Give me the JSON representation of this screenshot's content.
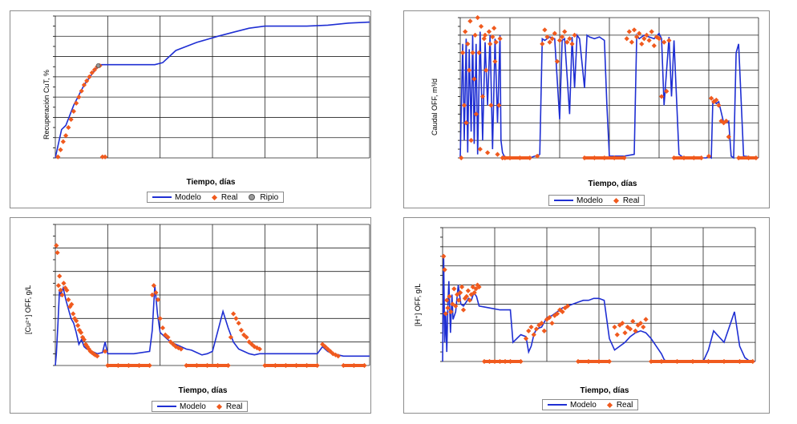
{
  "colors": {
    "model": "#1f2fd3",
    "real": "#f05a1e",
    "ripio": "#9a9a9a",
    "grid": "#222222"
  },
  "legend": {
    "model": "Modelo",
    "real": "Real",
    "ripio": "Ripio"
  },
  "chart_data": [
    {
      "type": "line",
      "xlabel": "Tiempo, días",
      "ylabel": "Recuperación CuT, %",
      "grid": true,
      "xlim": [
        0,
        6
      ],
      "ylim": [
        0,
        7
      ],
      "series": [
        {
          "name": "Modelo",
          "kind": "line",
          "x": [
            0,
            0.05,
            0.12,
            0.2,
            0.35,
            0.55,
            0.8,
            0.88,
            1.2,
            1.5,
            1.9,
            2.05,
            2.3,
            2.7,
            3.1,
            3.4,
            3.7,
            4.0,
            4.4,
            4.8,
            5.2,
            5.6,
            6.0
          ],
          "y": [
            0,
            0.6,
            1.4,
            1.6,
            2.6,
            3.6,
            4.5,
            4.6,
            4.6,
            4.6,
            4.6,
            4.7,
            5.3,
            5.7,
            6.0,
            6.2,
            6.4,
            6.5,
            6.5,
            6.5,
            6.55,
            6.65,
            6.7
          ]
        },
        {
          "name": "Real",
          "kind": "scatter",
          "x": [
            0.05,
            0.1,
            0.15,
            0.2,
            0.25,
            0.3,
            0.35,
            0.4,
            0.45,
            0.5,
            0.55,
            0.6,
            0.65,
            0.7,
            0.75,
            0.8,
            0.85,
            0.9,
            0.95
          ],
          "y": [
            0.05,
            0.4,
            0.8,
            1.1,
            1.5,
            1.9,
            2.3,
            2.7,
            3.0,
            3.3,
            3.6,
            3.8,
            4.0,
            4.2,
            4.35,
            4.5,
            4.55,
            0.05,
            0.05
          ]
        },
        {
          "name": "Ripio",
          "kind": "scatter",
          "x": [
            0.82
          ],
          "y": [
            4.55
          ]
        }
      ]
    },
    {
      "type": "line",
      "xlabel": "Tiempo, días",
      "ylabel": "Caudal OFF, m³/d",
      "grid": true,
      "xlim": [
        0,
        6
      ],
      "ylim": [
        0,
        8
      ],
      "series": [
        {
          "name": "Modelo",
          "kind": "line",
          "x": [
            0,
            0.05,
            0.08,
            0.12,
            0.15,
            0.18,
            0.22,
            0.25,
            0.28,
            0.32,
            0.35,
            0.4,
            0.45,
            0.5,
            0.55,
            0.6,
            0.65,
            0.7,
            0.75,
            0.8,
            0.82,
            0.85,
            0.9,
            1.4,
            1.6,
            1.65,
            1.7,
            1.8,
            1.9,
            2.0,
            2.05,
            2.1,
            2.2,
            2.25,
            2.3,
            2.35,
            2.4,
            2.5,
            2.55,
            2.6,
            2.7,
            2.8,
            2.9,
            2.95,
            3.0,
            3.3,
            3.5,
            3.55,
            3.6,
            3.7,
            3.8,
            3.9,
            4.0,
            4.05,
            4.1,
            4.2,
            4.25,
            4.3,
            4.4,
            4.5,
            4.6,
            4.7,
            4.8,
            4.85,
            4.9,
            4.95,
            5.0,
            5.05,
            5.08,
            5.1,
            5.15,
            5.2,
            5.3,
            5.35,
            5.4,
            5.45,
            5.5,
            5.55,
            5.6,
            5.7,
            6.0
          ],
          "y": [
            0,
            6.5,
            1,
            6.8,
            0.3,
            6.2,
            1.5,
            7,
            0.8,
            6.5,
            0.2,
            7.2,
            1,
            6.6,
            3,
            7,
            0.5,
            6.8,
            2,
            7,
            1,
            0.3,
            0,
            0,
            0.2,
            6.8,
            6.7,
            6.9,
            6.8,
            2.2,
            6.7,
            6.8,
            2.5,
            6.9,
            4,
            7.0,
            6.8,
            4,
            7,
            6.9,
            6.8,
            6.9,
            6.7,
            3,
            0.1,
            0.1,
            0.2,
            7,
            6.8,
            7,
            6.9,
            6.8,
            7.1,
            6.8,
            3,
            6.9,
            3.5,
            6.7,
            0.2,
            0,
            0,
            0,
            0,
            0,
            0,
            0,
            0.1,
            0,
            3.2,
            3.3,
            3.1,
            3.2,
            2,
            2.0,
            2.1,
            0.1,
            0,
            6,
            6.5,
            0.1,
            0
          ]
        },
        {
          "name": "Real",
          "kind": "scatter",
          "x": [
            0.02,
            0.05,
            0.08,
            0.1,
            0.12,
            0.15,
            0.18,
            0.2,
            0.22,
            0.25,
            0.28,
            0.3,
            0.32,
            0.35,
            0.38,
            0.4,
            0.42,
            0.45,
            0.48,
            0.5,
            0.52,
            0.55,
            0.58,
            0.6,
            0.62,
            0.65,
            0.68,
            0.7,
            0.72,
            0.75,
            0.78,
            0.8,
            0.85,
            0.9,
            1.0,
            1.2,
            1.4,
            1.55,
            1.65,
            1.7,
            1.75,
            1.8,
            1.85,
            1.9,
            1.95,
            2.0,
            2.05,
            2.1,
            2.15,
            2.2,
            2.25,
            2.3,
            2.5,
            2.7,
            2.9,
            3.1,
            3.3,
            3.35,
            3.4,
            3.45,
            3.5,
            3.55,
            3.6,
            3.65,
            3.7,
            3.75,
            3.8,
            3.85,
            3.9,
            3.95,
            4.0,
            4.05,
            4.1,
            4.15,
            4.2,
            4.3,
            4.5,
            4.7,
            4.85,
            5.0,
            5.05,
            5.1,
            5.15,
            5.2,
            5.25,
            5.3,
            5.35,
            5.4,
            5.6,
            5.8,
            5.95
          ],
          "y": [
            0,
            6,
            3,
            7.2,
            2,
            6.5,
            5,
            7.8,
            1,
            6,
            4.5,
            7,
            2.5,
            8,
            6,
            0.5,
            7.5,
            3.5,
            6.8,
            7,
            5,
            0.3,
            7.2,
            6.5,
            3,
            6.9,
            7.4,
            5.5,
            6.6,
            0.2,
            3,
            6.8,
            0,
            0,
            0,
            0,
            0,
            0.1,
            6.5,
            7.3,
            6.9,
            6.6,
            6.8,
            7.1,
            5.5,
            6.7,
            6.9,
            7.2,
            6.6,
            6.8,
            6.5,
            7.0,
            0,
            0,
            0,
            0,
            0,
            6.8,
            7.2,
            6.6,
            7.3,
            6.9,
            7.1,
            6.5,
            6.8,
            7.0,
            6.7,
            7.2,
            6.4,
            6.9,
            6.8,
            3.5,
            6.6,
            3.8,
            6.7,
            0,
            0,
            0,
            0,
            0.1,
            3.4,
            3.2,
            3.3,
            3.0,
            2.1,
            2.0,
            2.1,
            1.2,
            0,
            0,
            0
          ]
        }
      ]
    },
    {
      "type": "line",
      "xlabel": "Tiempo, días",
      "ylabel": "[Cu²⁺] OFF, g/L",
      "grid": true,
      "xlim": [
        0,
        6
      ],
      "ylim": [
        0,
        6
      ],
      "series": [
        {
          "name": "Modelo",
          "kind": "line",
          "x": [
            0,
            0.02,
            0.05,
            0.08,
            0.1,
            0.15,
            0.2,
            0.25,
            0.3,
            0.35,
            0.4,
            0.45,
            0.5,
            0.55,
            0.6,
            0.7,
            0.8,
            0.9,
            0.95,
            1.0,
            1.3,
            1.5,
            1.8,
            1.85,
            1.9,
            1.95,
            2.0,
            2.1,
            2.2,
            2.3,
            2.4,
            2.5,
            2.6,
            2.7,
            2.8,
            2.9,
            3.0,
            3.2,
            3.3,
            3.4,
            3.5,
            3.6,
            3.7,
            3.8,
            3.9,
            4.0,
            4.2,
            4.5,
            4.8,
            5.0,
            5.1,
            5.2,
            5.3,
            5.5,
            5.7,
            6.0
          ],
          "y": [
            0,
            0.5,
            1.8,
            3.2,
            3.0,
            3.3,
            2.8,
            2.4,
            2.0,
            1.8,
            1.4,
            0.9,
            1.1,
            0.8,
            0.7,
            0.6,
            0.5,
            0.55,
            1.0,
            0.5,
            0.5,
            0.5,
            0.6,
            1.5,
            3.4,
            2.2,
            1.4,
            1.2,
            1.0,
            0.9,
            0.8,
            0.7,
            0.65,
            0.55,
            0.45,
            0.5,
            0.6,
            2.3,
            1.6,
            1.0,
            0.7,
            0.6,
            0.5,
            0.45,
            0.5,
            0.5,
            0.5,
            0.5,
            0.5,
            0.5,
            0.8,
            0.6,
            0.5,
            0.4,
            0.4,
            0.4
          ]
        },
        {
          "name": "Real",
          "kind": "scatter",
          "x": [
            0.02,
            0.04,
            0.06,
            0.08,
            0.1,
            0.13,
            0.16,
            0.19,
            0.22,
            0.25,
            0.28,
            0.31,
            0.34,
            0.37,
            0.4,
            0.43,
            0.46,
            0.49,
            0.52,
            0.55,
            0.58,
            0.61,
            0.64,
            0.67,
            0.7,
            0.73,
            0.76,
            0.8,
            0.95,
            1.0,
            1.2,
            1.4,
            1.6,
            1.8,
            1.85,
            1.88,
            1.92,
            1.96,
            2.0,
            2.05,
            2.1,
            2.15,
            2.2,
            2.25,
            2.3,
            2.35,
            2.4,
            2.5,
            2.7,
            2.9,
            3.1,
            3.3,
            3.35,
            3.4,
            3.45,
            3.5,
            3.55,
            3.6,
            3.65,
            3.7,
            3.75,
            3.8,
            3.85,
            3.9,
            4.0,
            4.2,
            4.4,
            4.6,
            4.8,
            5.0,
            5.1,
            5.15,
            5.2,
            5.25,
            5.3,
            5.35,
            5.4,
            5.5,
            5.7,
            5.9
          ],
          "y": [
            5.1,
            4.8,
            3.4,
            3.8,
            3.2,
            3.0,
            3.5,
            3.3,
            3.2,
            2.8,
            2.5,
            2.6,
            2.2,
            2.0,
            1.9,
            1.7,
            1.5,
            1.4,
            1.2,
            1.1,
            0.9,
            0.8,
            0.7,
            0.6,
            0.55,
            0.5,
            0.45,
            0.4,
            0.6,
            0,
            0,
            0,
            0,
            0,
            3.0,
            3.4,
            3.1,
            2.8,
            2.0,
            1.6,
            1.3,
            1.2,
            1.0,
            0.9,
            0.8,
            0.75,
            0.7,
            0,
            0,
            0,
            0,
            0,
            1.2,
            2.2,
            2.0,
            1.8,
            1.5,
            1.3,
            1.2,
            1.0,
            0.9,
            0.8,
            0.75,
            0.7,
            0,
            0,
            0,
            0,
            0,
            0,
            0.9,
            0.8,
            0.7,
            0.6,
            0.5,
            0.45,
            0.4,
            0,
            0,
            0
          ]
        }
      ]
    },
    {
      "type": "line",
      "xlabel": "Tiempo, días",
      "ylabel": "[H⁺] OFF, g/L",
      "grid": true,
      "xlim": [
        0,
        6
      ],
      "ylim": [
        0,
        7
      ],
      "series": [
        {
          "name": "Modelo",
          "kind": "line",
          "x": [
            0,
            0.02,
            0.04,
            0.06,
            0.08,
            0.1,
            0.12,
            0.15,
            0.18,
            0.2,
            0.25,
            0.3,
            0.35,
            0.4,
            0.45,
            0.5,
            0.55,
            0.6,
            0.65,
            0.7,
            0.9,
            1.1,
            1.3,
            1.35,
            1.5,
            1.6,
            1.65,
            1.7,
            1.75,
            1.8,
            1.9,
            2.0,
            2.1,
            2.2,
            2.3,
            2.4,
            2.5,
            2.6,
            2.7,
            2.8,
            2.9,
            3.0,
            3.1,
            3.2,
            3.3,
            3.5,
            3.6,
            3.7,
            3.8,
            3.9,
            4.0,
            4.1,
            4.2,
            4.25,
            4.3,
            4.4,
            4.5,
            4.6,
            4.8,
            5.0,
            5.1,
            5.2,
            5.3,
            5.4,
            5.5,
            5.6,
            5.7,
            5.8,
            5.9,
            6.0
          ],
          "y": [
            0,
            5.5,
            1,
            2.5,
            0.5,
            2.8,
            4.2,
            1.5,
            3.5,
            2.2,
            2.6,
            4.0,
            3.0,
            2.9,
            3.1,
            3.3,
            3.2,
            3.6,
            3.4,
            2.9,
            2.8,
            2.7,
            2.7,
            1.0,
            1.4,
            1.3,
            0.5,
            0.8,
            1.4,
            1.7,
            1.8,
            2.3,
            2.4,
            2.6,
            2.8,
            2.9,
            3.0,
            3.1,
            3.2,
            3.2,
            3.3,
            3.3,
            3.2,
            1.2,
            0.6,
            1.0,
            1.3,
            1.5,
            1.6,
            1.5,
            1.2,
            0.8,
            0.4,
            0.1,
            0,
            0,
            0,
            0,
            0,
            0,
            0.6,
            1.6,
            1.3,
            1.0,
            1.8,
            2.6,
            0.8,
            0.2,
            0,
            0
          ]
        },
        {
          "name": "Real",
          "kind": "scatter",
          "x": [
            0.02,
            0.04,
            0.06,
            0.08,
            0.1,
            0.13,
            0.16,
            0.19,
            0.22,
            0.25,
            0.28,
            0.31,
            0.34,
            0.37,
            0.4,
            0.43,
            0.46,
            0.49,
            0.52,
            0.55,
            0.58,
            0.61,
            0.64,
            0.67,
            0.7,
            0.8,
            0.9,
            1.0,
            1.1,
            1.2,
            1.3,
            1.5,
            1.6,
            1.65,
            1.7,
            1.75,
            1.8,
            1.85,
            1.9,
            1.95,
            2.0,
            2.05,
            2.1,
            2.15,
            2.2,
            2.25,
            2.3,
            2.35,
            2.4,
            2.6,
            2.8,
            3.0,
            3.2,
            3.3,
            3.35,
            3.4,
            3.45,
            3.5,
            3.55,
            3.6,
            3.65,
            3.7,
            3.75,
            3.8,
            3.85,
            3.9,
            4.0,
            4.2,
            4.5,
            4.8,
            5.1,
            5.4,
            5.7,
            5.95
          ],
          "y": [
            5.5,
            4.8,
            2.5,
            3.2,
            2.8,
            3.4,
            2.6,
            3.0,
            3.8,
            2.9,
            3.5,
            3.2,
            3.6,
            3.9,
            2.7,
            3.3,
            3.4,
            3.7,
            3.2,
            3.5,
            3.9,
            3.6,
            3.8,
            4.0,
            3.9,
            0,
            0,
            0,
            0,
            0,
            0,
            0,
            1.2,
            1.6,
            1.8,
            1.4,
            1.7,
            1.9,
            2.0,
            1.6,
            2.2,
            2.3,
            2.0,
            2.4,
            2.5,
            2.7,
            2.6,
            2.8,
            2.9,
            0,
            0,
            0,
            0,
            1.8,
            1.4,
            1.9,
            2.0,
            1.5,
            1.8,
            1.7,
            2.1,
            1.6,
            1.9,
            2.0,
            1.8,
            2.2,
            0,
            0,
            0,
            0,
            0,
            0,
            0,
            0
          ]
        }
      ]
    }
  ]
}
